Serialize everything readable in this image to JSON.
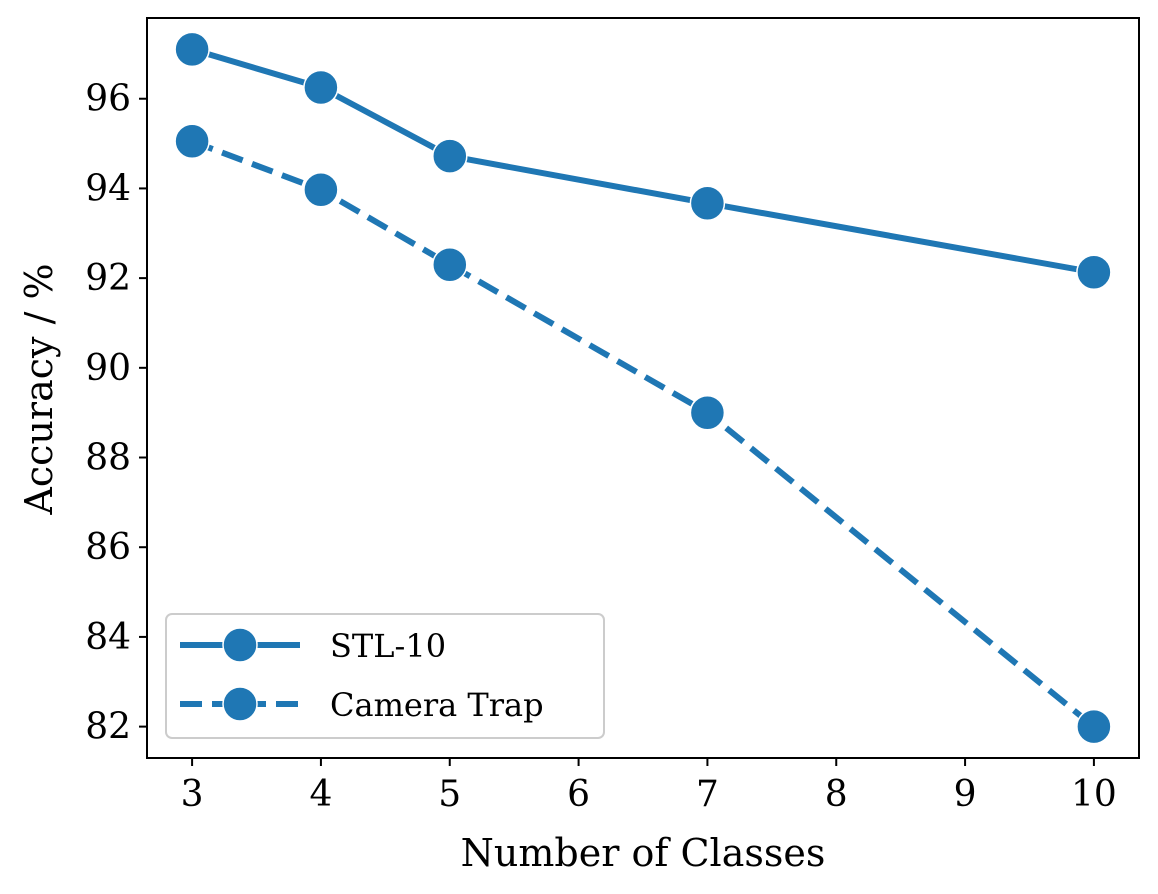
{
  "chart_data": {
    "type": "line",
    "title": "",
    "xlabel": "Number of Classes",
    "ylabel": "Accuracy / %",
    "x": [
      3,
      4,
      5,
      7,
      10
    ],
    "xlim": [
      2.65,
      10.35
    ],
    "ylim": [
      81.3,
      97.8
    ],
    "xticks": [
      3,
      4,
      5,
      6,
      7,
      8,
      9,
      10
    ],
    "yticks": [
      82,
      84,
      86,
      88,
      90,
      92,
      94,
      96
    ],
    "grid": false,
    "legend_position": "lower-left",
    "series": [
      {
        "name": "STL-10",
        "values": [
          97.1,
          96.25,
          94.72,
          93.67,
          92.13
        ],
        "line_style": "solid",
        "marker": "circle",
        "color": "#1f77b4"
      },
      {
        "name": "Camera Trap",
        "values": [
          95.05,
          93.97,
          92.3,
          89.0,
          82.0
        ],
        "line_style": "dashed",
        "marker": "circle",
        "color": "#1f77b4"
      }
    ]
  }
}
